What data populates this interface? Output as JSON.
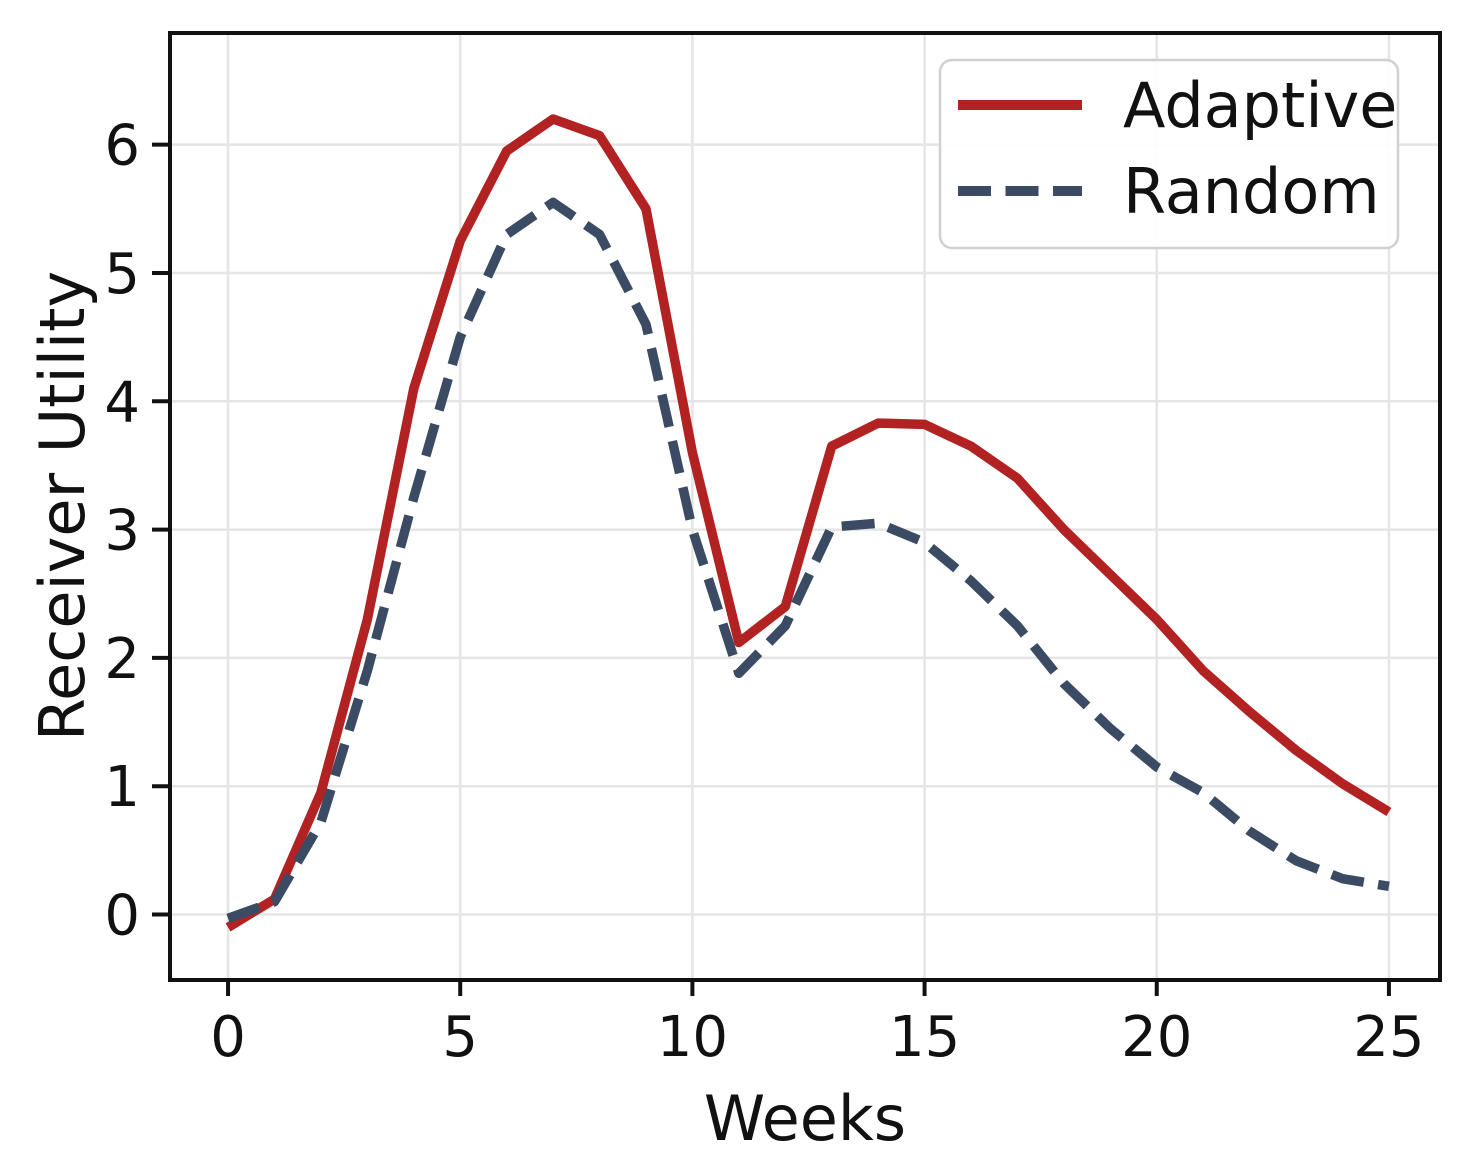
{
  "figure": {
    "background": "#ffffff"
  },
  "chart_data": {
    "type": "line",
    "title": "",
    "xlabel": "Weeks",
    "ylabel": "Receiver Utility",
    "x": [
      0,
      1,
      2,
      3,
      4,
      5,
      6,
      7,
      8,
      9,
      10,
      11,
      12,
      13,
      14,
      15,
      16,
      17,
      18,
      19,
      20,
      21,
      22,
      23,
      24,
      25
    ],
    "series": [
      {
        "name": "Adaptive",
        "line_style": "solid",
        "color": "#b22222",
        "values": [
          -0.1,
          0.12,
          0.95,
          2.3,
          4.1,
          5.25,
          5.95,
          6.2,
          6.07,
          5.5,
          3.6,
          2.12,
          2.4,
          3.65,
          3.83,
          3.82,
          3.65,
          3.4,
          3.0,
          2.65,
          2.3,
          1.9,
          1.58,
          1.28,
          1.02,
          0.8
        ]
      },
      {
        "name": "Random",
        "line_style": "dashed",
        "color": "#3a4b63",
        "values": [
          -0.03,
          0.1,
          0.72,
          1.9,
          3.25,
          4.5,
          5.3,
          5.55,
          5.3,
          4.6,
          3.0,
          1.88,
          2.25,
          3.02,
          3.05,
          2.9,
          2.6,
          2.25,
          1.8,
          1.45,
          1.15,
          0.95,
          0.65,
          0.42,
          0.28,
          0.22
        ]
      }
    ],
    "xticks": [
      0,
      5,
      10,
      15,
      20,
      25
    ],
    "xtick_labels": [
      "0",
      "5",
      "10",
      "15",
      "20",
      "25"
    ],
    "yticks": [
      0,
      1,
      2,
      3,
      4,
      5,
      6
    ],
    "ytick_labels": [
      "0",
      "1",
      "2",
      "3",
      "4",
      "5",
      "6"
    ],
    "xlim": [
      -1.25,
      26.1
    ],
    "ylim": [
      -0.51,
      6.87
    ],
    "grid": true,
    "grid_color": "#e5e5e5",
    "spine_color": "#111111",
    "text_color": "#111111",
    "legend_position": "upper right",
    "legend_border_color": "#d0d0d0",
    "legend_background": "#ffffff"
  }
}
